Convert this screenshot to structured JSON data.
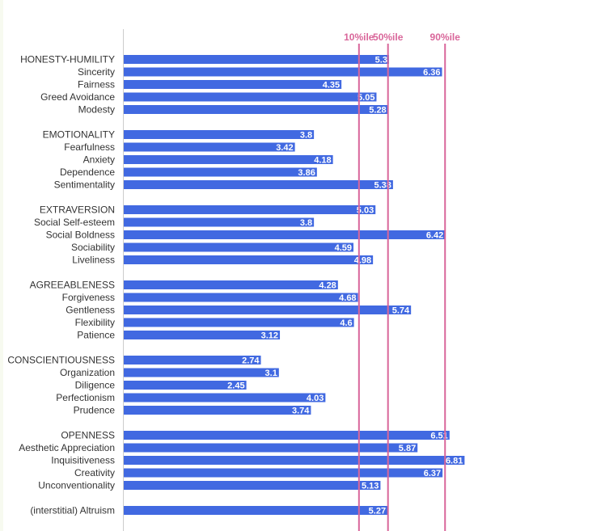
{
  "chart_data": {
    "type": "bar",
    "orientation": "horizontal",
    "colors": {
      "bar": "#4169e1",
      "reference": "#d9669a",
      "value_text": "#ffffff",
      "label_text": "#333333"
    },
    "value_range": [
      0,
      8
    ],
    "reference_lines": [
      {
        "label": "10%ile",
        "value": 4.7
      },
      {
        "label": "50%ile",
        "value": 5.28
      },
      {
        "label": "90%ile",
        "value": 6.42
      }
    ],
    "groups": [
      {
        "items": [
          {
            "label": "HONESTY-HUMILITY",
            "value": 5.3,
            "display": "5.3"
          },
          {
            "label": "Sincerity",
            "value": 6.36,
            "display": "6.36"
          },
          {
            "label": "Fairness",
            "value": 4.35,
            "display": "4.35"
          },
          {
            "label": "Greed Avoidance",
            "value": 5.05,
            "display": "5.05"
          },
          {
            "label": "Modesty",
            "value": 5.28,
            "display": "5.28"
          }
        ]
      },
      {
        "items": [
          {
            "label": "EMOTIONALITY",
            "value": 3.8,
            "display": "3.8"
          },
          {
            "label": "Fearfulness",
            "value": 3.42,
            "display": "3.42"
          },
          {
            "label": "Anxiety",
            "value": 4.18,
            "display": "4.18"
          },
          {
            "label": "Dependence",
            "value": 3.86,
            "display": "3.86"
          },
          {
            "label": "Sentimentality",
            "value": 5.38,
            "display": "5.38"
          }
        ]
      },
      {
        "items": [
          {
            "label": "EXTRAVERSION",
            "value": 5.03,
            "display": "5.03"
          },
          {
            "label": "Social Self-esteem",
            "value": 3.8,
            "display": "3.8"
          },
          {
            "label": "Social Boldness",
            "value": 6.42,
            "display": "6.42"
          },
          {
            "label": "Sociability",
            "value": 4.59,
            "display": "4.59"
          },
          {
            "label": "Liveliness",
            "value": 4.98,
            "display": "4.98"
          }
        ]
      },
      {
        "items": [
          {
            "label": "AGREEABLENESS",
            "value": 4.28,
            "display": "4.28"
          },
          {
            "label": "Forgiveness",
            "value": 4.68,
            "display": "4.68"
          },
          {
            "label": "Gentleness",
            "value": 5.74,
            "display": "5.74"
          },
          {
            "label": "Flexibility",
            "value": 4.6,
            "display": "4.6"
          },
          {
            "label": "Patience",
            "value": 3.12,
            "display": "3.12"
          }
        ]
      },
      {
        "items": [
          {
            "label": "CONSCIENTIOUSNESS",
            "value": 2.74,
            "display": "2.74"
          },
          {
            "label": "Organization",
            "value": 3.1,
            "display": "3.1"
          },
          {
            "label": "Diligence",
            "value": 2.45,
            "display": "2.45"
          },
          {
            "label": "Perfectionism",
            "value": 4.03,
            "display": "4.03"
          },
          {
            "label": "Prudence",
            "value": 3.74,
            "display": "3.74"
          }
        ]
      },
      {
        "items": [
          {
            "label": "OPENNESS",
            "value": 6.51,
            "display": "6.51"
          },
          {
            "label": "Aesthetic Appreciation",
            "value": 5.87,
            "display": "5.87"
          },
          {
            "label": "Inquisitiveness",
            "value": 6.81,
            "display": "6.81"
          },
          {
            "label": "Creativity",
            "value": 6.37,
            "display": "6.37"
          },
          {
            "label": "Unconventionality",
            "value": 5.13,
            "display": "5.13"
          }
        ]
      },
      {
        "items": [
          {
            "label": "(interstitial) Altruism",
            "value": 5.27,
            "display": "5.27"
          }
        ]
      }
    ]
  }
}
